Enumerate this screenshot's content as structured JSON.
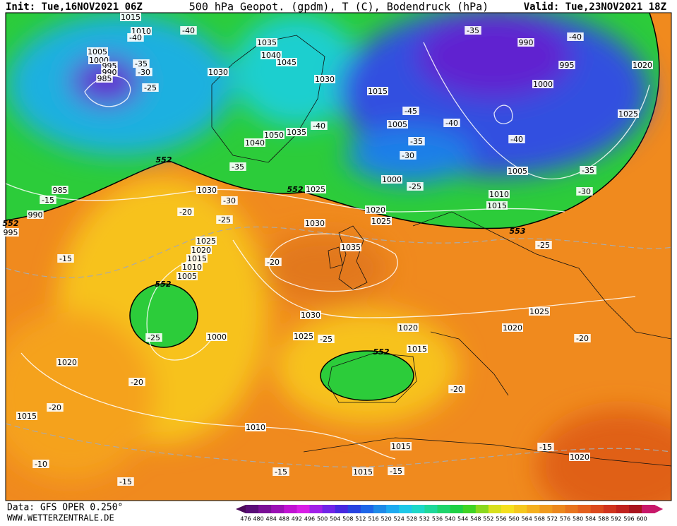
{
  "header": {
    "init": "Init: Tue,16NOV2021 06Z",
    "title": "500 hPa Geopot. (gpdm), T (C), Bodendruck (hPa)",
    "valid": "Valid: Tue,23NOV2021 18Z"
  },
  "footer": {
    "data": "Data: GFS OPER 0.250°",
    "site": "WWW.WETTERZENTRALE.DE"
  },
  "colorbar": {
    "ticks": [
      476,
      480,
      484,
      488,
      492,
      496,
      500,
      504,
      508,
      512,
      516,
      520,
      524,
      528,
      532,
      536,
      540,
      544,
      548,
      552,
      556,
      560,
      564,
      568,
      572,
      576,
      580,
      584,
      588,
      592,
      596,
      600
    ]
  },
  "map": {
    "labels": [
      "1015",
      "1010",
      "-40",
      "-40",
      "1005",
      "1000",
      "995",
      "990",
      "985",
      "-35",
      "-30",
      "-25",
      "1035",
      "1040",
      "1045",
      "1030",
      "1030",
      "1015",
      "-35",
      "990",
      "-40",
      "995",
      "1020",
      "1000",
      "1025",
      "-45",
      "1005",
      "-40",
      "-35",
      "-40",
      "-30",
      "1050",
      "1035",
      "1040",
      "-40",
      "-35",
      "552",
      "1030",
      "-30",
      "552",
      "1025",
      "1000",
      "-25",
      "1005",
      "-35",
      "-30",
      "1010",
      "1015",
      "985",
      "-15",
      "990",
      "552",
      "995",
      "-20",
      "-25",
      "1020",
      "1025",
      "1030",
      "553",
      "1025",
      "1020",
      "1015",
      "1010",
      "1005",
      "-25",
      "1035",
      "-15",
      "-20",
      "552",
      "1030",
      "1025",
      "-25",
      "1000",
      "1025",
      "-25",
      "1020",
      "1020",
      "-20",
      "552",
      "1015",
      "1020",
      "-20",
      "-20",
      "-20",
      "1015",
      "1010",
      "1015",
      "-15",
      "1020",
      "-10",
      "-15",
      "1015",
      "-15",
      "-15"
    ]
  }
}
